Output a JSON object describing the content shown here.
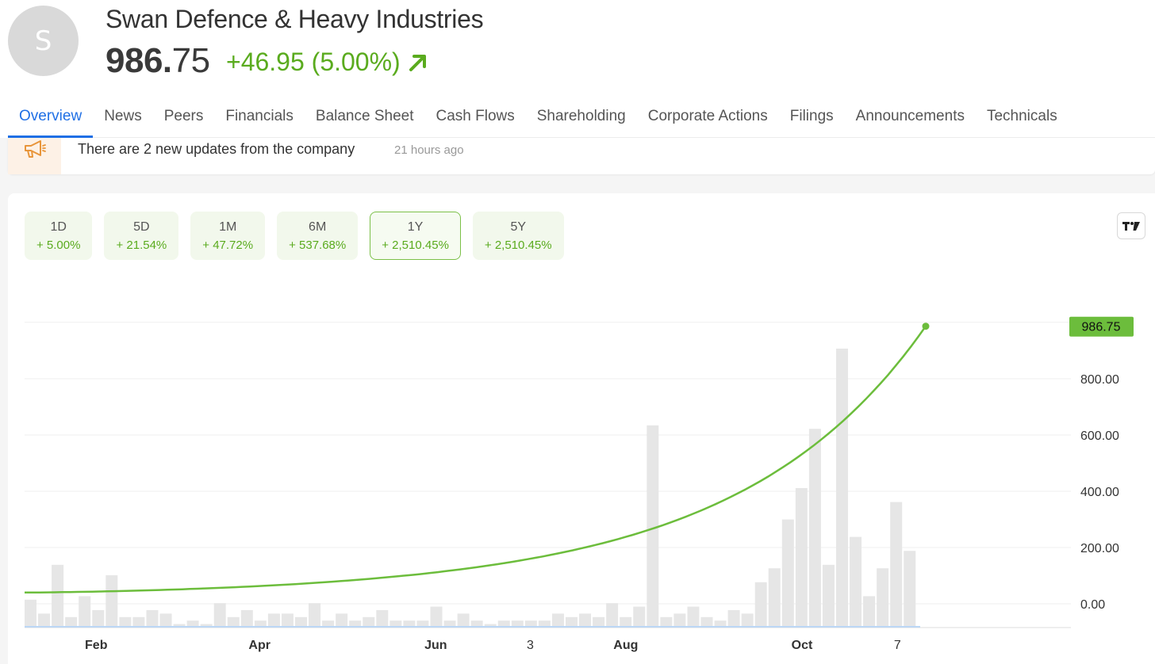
{
  "company": {
    "avatar_letter": "S",
    "name": "Swan Defence & Heavy Industries",
    "price_int": "986.",
    "price_dec": "75",
    "change": "+46.95 (5.00%)"
  },
  "tabs": [
    {
      "label": "Overview",
      "active": true
    },
    {
      "label": "News"
    },
    {
      "label": "Peers"
    },
    {
      "label": "Financials"
    },
    {
      "label": "Balance Sheet"
    },
    {
      "label": "Cash Flows"
    },
    {
      "label": "Shareholding"
    },
    {
      "label": "Corporate Actions"
    },
    {
      "label": "Filings"
    },
    {
      "label": "Announcements"
    },
    {
      "label": "Technicals"
    }
  ],
  "updates": {
    "icon": "megaphone-icon",
    "message": "There are 2 new updates from the company",
    "time_ago": "21 hours ago"
  },
  "periods": [
    {
      "label": "1D",
      "value": "+ 5.00%"
    },
    {
      "label": "5D",
      "value": "+ 21.54%"
    },
    {
      "label": "1M",
      "value": "+ 47.72%"
    },
    {
      "label": "6M",
      "value": "+ 537.68%"
    },
    {
      "label": "1Y",
      "value": "+ 2,510.45%",
      "selected": true
    },
    {
      "label": "5Y",
      "value": "+ 2,510.45%"
    }
  ],
  "colors": {
    "positive": "#5aab1e",
    "line": "#6cbd3c",
    "accent_tab": "#1f6fe5",
    "volume_bar": "#e6e6e6",
    "last_price_tag": "#6cbd3c"
  },
  "chart_data": {
    "type": "line",
    "last_price_label": "986.75",
    "ytick_labels": [
      "800.00",
      "600.00",
      "400.00",
      "200.00",
      "0.00"
    ],
    "ytick_values": [
      800,
      600,
      400,
      200,
      0
    ],
    "xtick_labels": [
      {
        "label": "Feb",
        "bold": true,
        "pos": 0.078
      },
      {
        "label": "Apr",
        "bold": true,
        "pos": 0.256
      },
      {
        "label": "Jun",
        "bold": true,
        "pos": 0.448
      },
      {
        "label": "3",
        "bold": false,
        "pos": 0.551
      },
      {
        "label": "Aug",
        "bold": true,
        "pos": 0.655
      },
      {
        "label": "Oct",
        "bold": true,
        "pos": 0.847
      },
      {
        "label": "7",
        "bold": false,
        "pos": 0.951
      }
    ],
    "price_series": {
      "start": 40,
      "end": 986.75,
      "growth": "exponential"
    },
    "ylim": [
      -85,
      1100
    ],
    "volume_relative": [
      0.08,
      0.04,
      0.18,
      0.03,
      0.09,
      0.05,
      0.15,
      0.03,
      0.03,
      0.05,
      0.04,
      0.01,
      0.02,
      0.01,
      0.07,
      0.03,
      0.05,
      0.02,
      0.04,
      0.04,
      0.03,
      0.07,
      0.02,
      0.04,
      0.02,
      0.03,
      0.05,
      0.02,
      0.02,
      0.02,
      0.06,
      0.02,
      0.04,
      0.02,
      0.01,
      0.02,
      0.02,
      0.02,
      0.02,
      0.04,
      0.03,
      0.04,
      0.03,
      0.07,
      0.03,
      0.06,
      0.58,
      0.03,
      0.04,
      0.06,
      0.03,
      0.02,
      0.05,
      0.04,
      0.13,
      0.17,
      0.31,
      0.4,
      0.57,
      0.18,
      0.8,
      0.26,
      0.09,
      0.17,
      0.36,
      0.22
    ]
  }
}
